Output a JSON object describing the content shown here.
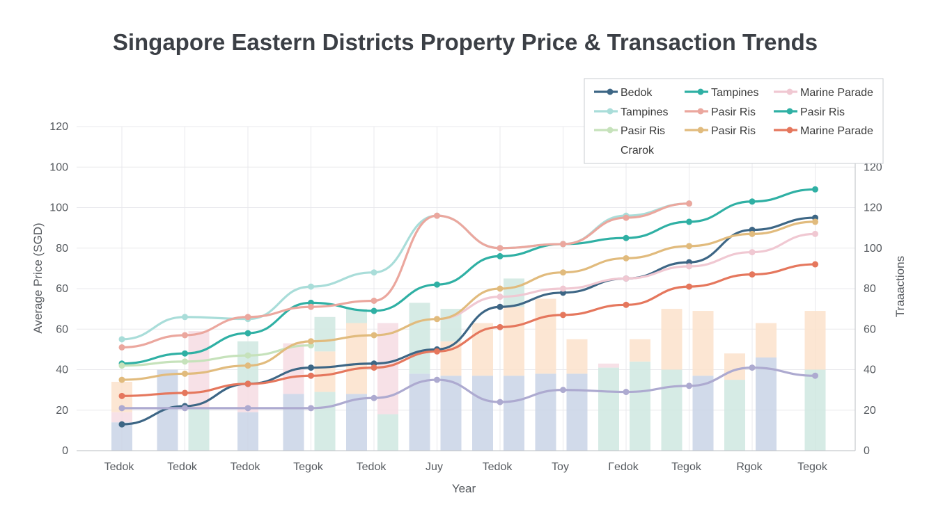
{
  "chart_data": {
    "type": "line",
    "title": "Singapore Eastern Districts Property Price & Transaction Trends",
    "xlabel": "Year",
    "ylabel": "Average Price (SGD)",
    "y2label": "Traaactions",
    "categories": [
      "Tedok",
      "Tedok",
      "Tedok",
      "Tegok",
      "Tedok",
      "Juy",
      "Tedok",
      "Toy",
      "Γedok",
      "Tegok",
      "Rgok",
      "Tegok"
    ],
    "y_left_ticks": [
      "0",
      "20",
      "40",
      "60",
      "60",
      "80",
      "100",
      "100",
      "120"
    ],
    "y_right_ticks": [
      "0",
      "20",
      "40",
      "60",
      "80",
      "100",
      "120",
      "120"
    ],
    "ylim": [
      0,
      160
    ],
    "grid": true,
    "legend_position": "top-right",
    "series": [
      {
        "name": "Bedok",
        "color": "#3d6685",
        "values": [
          13,
          22,
          33,
          41,
          43,
          50,
          71,
          78,
          85,
          93,
          109,
          115
        ]
      },
      {
        "name": "Tampines",
        "color": "#2fb0a4",
        "values": [
          43,
          48,
          58,
          73,
          69,
          82,
          96,
          102,
          105,
          113,
          123,
          129
        ]
      },
      {
        "name": "Marine Parade",
        "color": "#f0c8d2",
        "values": [
          null,
          null,
          null,
          null,
          null,
          65,
          76,
          80,
          85,
          91,
          98,
          107
        ]
      },
      {
        "name": "Tampines",
        "color": "#a9ddd9",
        "values": [
          55,
          66,
          65,
          81,
          88,
          116,
          100,
          102,
          116,
          122,
          null,
          null
        ]
      },
      {
        "name": "Pasir Ris",
        "color": "#eba79e",
        "values": [
          51,
          57,
          66,
          71,
          74,
          116,
          100,
          102,
          115,
          122,
          null,
          null
        ]
      },
      {
        "name": "Pasir Ris",
        "color": "#c6e2bb",
        "values": [
          42,
          44,
          47,
          52,
          null,
          null,
          null,
          null,
          null,
          null,
          null,
          null
        ]
      },
      {
        "name": "Pasir Ris",
        "color": "#e1bb7d",
        "values": [
          35,
          38,
          42,
          54,
          57,
          65,
          80,
          88,
          95,
          101,
          107,
          113
        ]
      },
      {
        "name": "Marine Parade",
        "color": "#e5775d",
        "values": [
          27,
          28.5,
          33,
          37,
          41,
          49,
          61,
          67,
          72,
          81,
          87,
          92
        ]
      },
      {
        "name": "Crarok",
        "color": "#adaad0",
        "values": [
          21,
          21,
          21,
          21,
          26,
          35,
          24,
          30,
          29,
          32,
          41,
          37
        ]
      }
    ],
    "bars": {
      "colors": {
        "blue": "#c9d4e6",
        "green": "#cfe7e0",
        "orange": "#fbe2cb",
        "pink": "#f6dce3"
      },
      "groups": [
        [
          {
            "color": "blue",
            "segments": [
              {
                "value": 14,
                "color": "blue"
              },
              {
                "value": 5,
                "color": "pink"
              },
              {
                "value": 15,
                "color": "orange"
              }
            ]
          }
        ],
        [
          {
            "color": "blue",
            "segments": [
              {
                "value": 40,
                "color": "blue"
              }
            ]
          },
          {
            "color": "green",
            "segments": [
              {
                "value": 21,
                "color": "green"
              },
              {
                "value": 38,
                "color": "pink"
              }
            ]
          }
        ],
        [
          {
            "color": "green",
            "segments": [
              {
                "value": 19,
                "color": "blue"
              },
              {
                "value": 14,
                "color": "pink"
              },
              {
                "value": 21,
                "color": "green"
              }
            ]
          }
        ],
        [
          {
            "color": "blue",
            "segments": [
              {
                "value": 28,
                "color": "blue"
              },
              {
                "value": 25,
                "color": "pink"
              }
            ]
          },
          {
            "color": "green",
            "segments": [
              {
                "value": 29,
                "color": "green"
              },
              {
                "value": 20,
                "color": "orange"
              },
              {
                "value": 17,
                "color": "green"
              }
            ]
          }
        ],
        [
          {
            "color": "blue",
            "segments": [
              {
                "value": 28,
                "color": "blue"
              },
              {
                "value": 35,
                "color": "orange"
              },
              {
                "value": 7,
                "color": "green"
              }
            ]
          },
          {
            "color": "green",
            "segments": [
              {
                "value": 18,
                "color": "green"
              },
              {
                "value": 45,
                "color": "pink"
              }
            ]
          }
        ],
        [
          {
            "color": "blue",
            "segments": [
              {
                "value": 38,
                "color": "blue"
              },
              {
                "value": 35,
                "color": "green"
              }
            ]
          },
          {
            "color": "blue",
            "segments": [
              {
                "value": 37,
                "color": "blue"
              },
              {
                "value": 17,
                "color": "orange"
              },
              {
                "value": 16,
                "color": "green"
              }
            ]
          }
        ],
        [
          {
            "color": "blue",
            "segments": [
              {
                "value": 37,
                "color": "blue"
              },
              {
                "value": 26,
                "color": "orange"
              }
            ]
          },
          {
            "color": "blue",
            "segments": [
              {
                "value": 37,
                "color": "blue"
              },
              {
                "value": 34,
                "color": "orange"
              },
              {
                "value": 14,
                "color": "green"
              }
            ]
          }
        ],
        [
          {
            "color": "blue",
            "segments": [
              {
                "value": 38,
                "color": "blue"
              },
              {
                "value": 37,
                "color": "orange"
              }
            ]
          },
          {
            "color": "blue",
            "segments": [
              {
                "value": 38,
                "color": "blue"
              },
              {
                "value": 17,
                "color": "orange"
              }
            ]
          }
        ],
        [
          {
            "color": "green",
            "segments": [
              {
                "value": 41,
                "color": "green"
              },
              {
                "value": 2,
                "color": "pink"
              }
            ]
          },
          {
            "color": "green",
            "segments": [
              {
                "value": 44,
                "color": "green"
              },
              {
                "value": 11,
                "color": "orange"
              }
            ]
          }
        ],
        [
          {
            "color": "green",
            "segments": [
              {
                "value": 40,
                "color": "green"
              },
              {
                "value": 30,
                "color": "orange"
              }
            ]
          },
          {
            "color": "blue",
            "segments": [
              {
                "value": 37,
                "color": "blue"
              },
              {
                "value": 32,
                "color": "orange"
              }
            ]
          }
        ],
        [
          {
            "color": "green",
            "segments": [
              {
                "value": 35,
                "color": "green"
              },
              {
                "value": 13,
                "color": "orange"
              }
            ]
          },
          {
            "color": "blue",
            "segments": [
              {
                "value": 46,
                "color": "blue"
              },
              {
                "value": 17,
                "color": "orange"
              }
            ]
          }
        ],
        [
          {
            "color": "green",
            "segments": [
              {
                "value": 40,
                "color": "green"
              },
              {
                "value": 29,
                "color": "orange"
              }
            ]
          }
        ]
      ]
    }
  },
  "legend": {
    "entries": [
      {
        "label": "Bedok",
        "color": "#3d6685",
        "marker": true
      },
      {
        "label": "Tampines",
        "color": "#2fb0a4",
        "marker": true
      },
      {
        "label": "Marine Parade",
        "color": "#f0c8d2",
        "marker": true
      },
      {
        "label": "Tampines",
        "color": "#a9ddd9",
        "marker": true
      },
      {
        "label": "Pasir Ris",
        "color": "#eba79e",
        "marker": true
      },
      {
        "label": "Pasir Ris",
        "color": "#2fb0a4",
        "marker": true
      },
      {
        "label": "Pasir Ris",
        "color": "#c6e2bb",
        "marker": true
      },
      {
        "label": "Pasir Ris",
        "color": "#e1bb7d",
        "marker": true
      },
      {
        "label": "Marine Parade",
        "color": "#e5775d",
        "marker": true
      },
      {
        "label": "Crarok",
        "color": "",
        "marker": false
      }
    ]
  }
}
